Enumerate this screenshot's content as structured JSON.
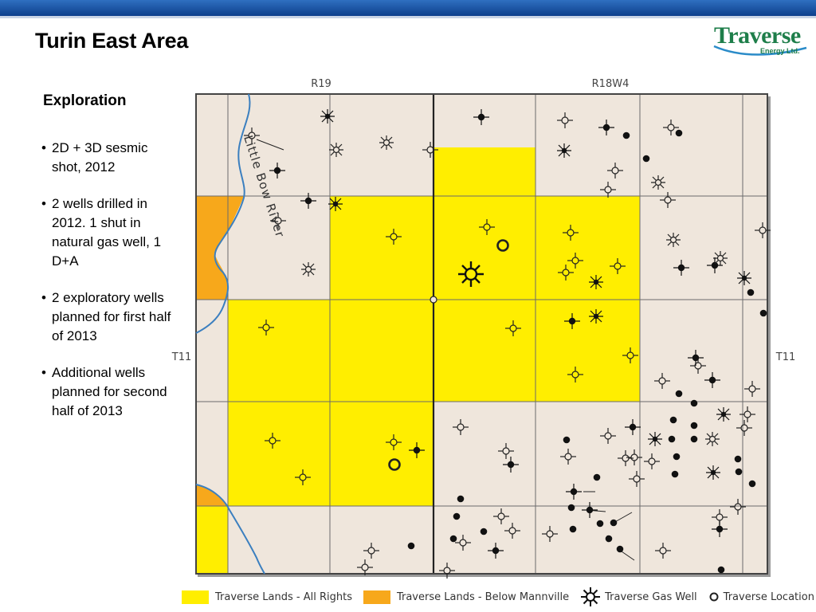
{
  "slide": {
    "title": "Turin East Area"
  },
  "logo": {
    "name": "Traverse",
    "sub": "Energy Ltd."
  },
  "content": {
    "heading": "Exploration",
    "bullets": [
      "2D + 3D sesmic shot, 2012",
      "2 wells drilled in 2012. 1 shut in natural gas well, 1 D+A",
      "2 exploratory wells planned for first half of 2013",
      "Additional wells planned for second half of 2013"
    ]
  },
  "map": {
    "range_labels": [
      "R19",
      "R18W4"
    ],
    "township_label_left": "T11",
    "township_label_right": "T11",
    "river_label": "Little Bow River",
    "colors": {
      "background": "#efe6dc",
      "all_rights": "#ffee00",
      "below_mannville": "#f7a81b",
      "grid": "#6b6b6b",
      "river": "#3b7fbf"
    }
  },
  "legend": {
    "all_rights": "Traverse Lands - All Rights",
    "below_mannville": "Traverse Lands - Below Mannville",
    "gas_well": "Traverse Gas Well",
    "location": "Traverse Location"
  }
}
